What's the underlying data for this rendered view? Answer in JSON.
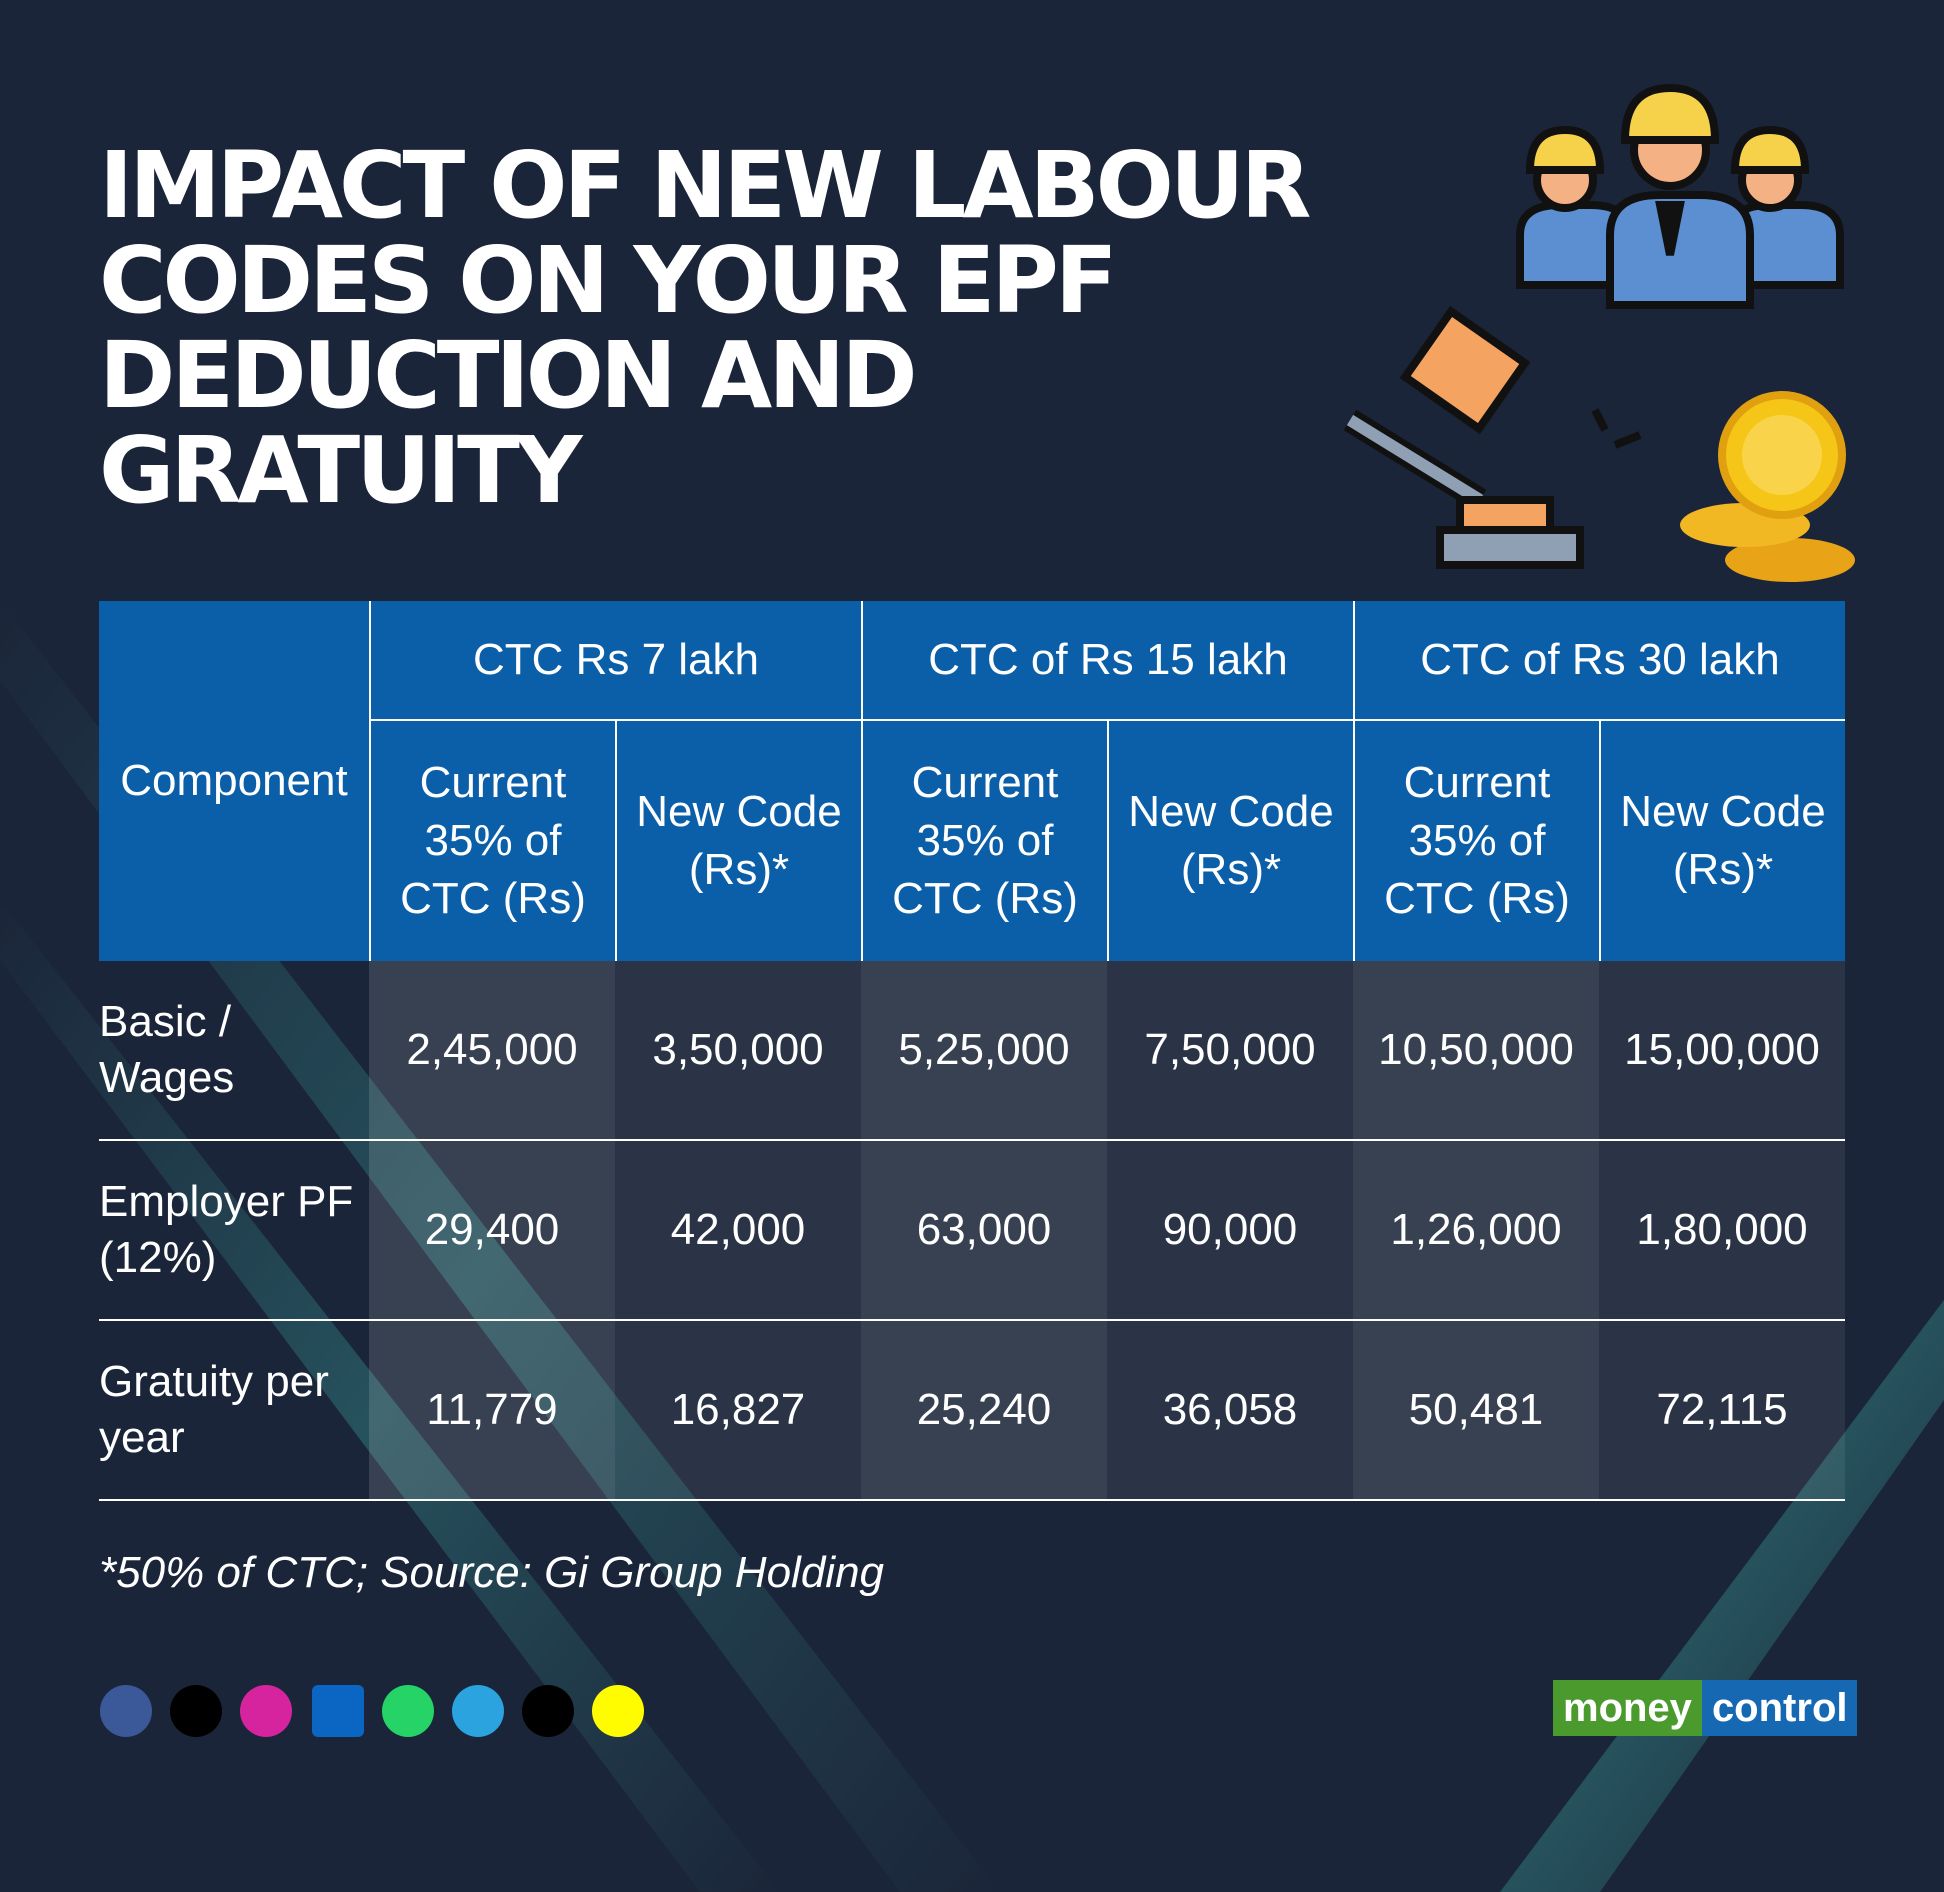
{
  "title_lines": [
    "IMPACT OF NEW LABOUR",
    "CODES ON YOUR EPF",
    "DEDUCTION AND",
    "GRATUITY"
  ],
  "table": {
    "corner": "Component",
    "groups": [
      "CTC Rs 7 lakh",
      "CTC of Rs 15 lakh",
      "CTC of Rs 30 lakh"
    ],
    "subheaders": [
      "Current 35% of CTC (Rs)",
      "New Code (Rs)*",
      "Current 35% of CTC (Rs)",
      "New Code (Rs)*",
      "Current 35% of CTC (Rs)",
      "New Code (Rs)*"
    ],
    "rows": [
      {
        "label": "Basic / Wages",
        "cells": [
          "2,45,000",
          "3,50,000",
          "5,25,000",
          "7,50,000",
          "10,50,000",
          "15,00,000"
        ]
      },
      {
        "label": "Employer PF (12%)",
        "cells": [
          "29,400",
          "42,000",
          "63,000",
          "90,000",
          "1,26,000",
          "1,80,000"
        ]
      },
      {
        "label": "Gratuity per year",
        "cells": [
          "11,779",
          "16,827",
          "25,240",
          "36,058",
          "50,481",
          "72,115"
        ]
      }
    ]
  },
  "footnote": "*50% of CTC; Source: Gi Group Holding",
  "brand": {
    "left": "money",
    "right": "control"
  }
}
